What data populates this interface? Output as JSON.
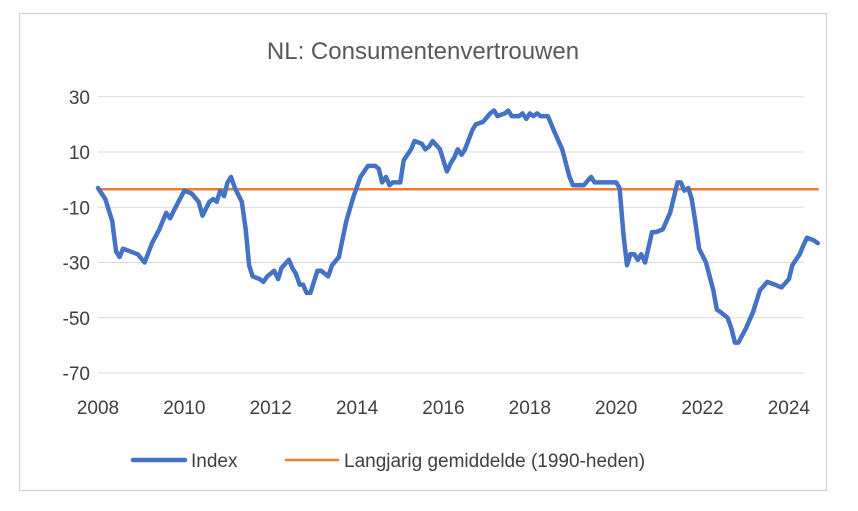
{
  "chart_data": {
    "type": "line",
    "title": "NL: Consumentenvertrouwen",
    "xlabel": "",
    "ylabel": "",
    "xlim": [
      2008,
      2024.35
    ],
    "ylim": [
      -70,
      35
    ],
    "x_ticks": [
      2008,
      2010,
      2012,
      2014,
      2016,
      2018,
      2020,
      2022,
      2024
    ],
    "y_ticks": [
      30,
      10,
      -10,
      -30,
      -50,
      -70
    ],
    "grid": "horizontal",
    "legend": "bottom",
    "series": [
      {
        "name": "Index",
        "color": "#4472c4",
        "points": [
          [
            2008.0,
            -3
          ],
          [
            2008.17,
            -7
          ],
          [
            2008.33,
            -15
          ],
          [
            2008.42,
            -26
          ],
          [
            2008.5,
            -28
          ],
          [
            2008.58,
            -25
          ],
          [
            2008.75,
            -26
          ],
          [
            2008.92,
            -27
          ],
          [
            2009.08,
            -30
          ],
          [
            2009.25,
            -23
          ],
          [
            2009.42,
            -18
          ],
          [
            2009.58,
            -12
          ],
          [
            2009.67,
            -14
          ],
          [
            2009.83,
            -9
          ],
          [
            2010.0,
            -4
          ],
          [
            2010.17,
            -5
          ],
          [
            2010.33,
            -8
          ],
          [
            2010.42,
            -13
          ],
          [
            2010.58,
            -8
          ],
          [
            2010.67,
            -7
          ],
          [
            2010.75,
            -8
          ],
          [
            2010.83,
            -4
          ],
          [
            2010.92,
            -6
          ],
          [
            2011.0,
            -1
          ],
          [
            2011.08,
            1
          ],
          [
            2011.17,
            -3
          ],
          [
            2011.33,
            -8
          ],
          [
            2011.42,
            -18
          ],
          [
            2011.5,
            -31
          ],
          [
            2011.58,
            -35
          ],
          [
            2011.75,
            -36
          ],
          [
            2011.83,
            -37
          ],
          [
            2011.92,
            -35
          ],
          [
            2012.0,
            -34
          ],
          [
            2012.08,
            -33
          ],
          [
            2012.17,
            -36
          ],
          [
            2012.25,
            -32
          ],
          [
            2012.42,
            -29
          ],
          [
            2012.5,
            -32
          ],
          [
            2012.58,
            -34
          ],
          [
            2012.67,
            -38
          ],
          [
            2012.75,
            -38
          ],
          [
            2012.83,
            -41
          ],
          [
            2012.92,
            -41
          ],
          [
            2013.08,
            -33
          ],
          [
            2013.17,
            -33
          ],
          [
            2013.33,
            -35
          ],
          [
            2013.42,
            -31
          ],
          [
            2013.58,
            -28
          ],
          [
            2013.75,
            -15
          ],
          [
            2013.92,
            -6
          ],
          [
            2014.08,
            1
          ],
          [
            2014.25,
            5
          ],
          [
            2014.42,
            5
          ],
          [
            2014.5,
            4
          ],
          [
            2014.58,
            -1
          ],
          [
            2014.67,
            1
          ],
          [
            2014.75,
            -2
          ],
          [
            2014.83,
            -1
          ],
          [
            2015.0,
            -1
          ],
          [
            2015.08,
            7
          ],
          [
            2015.25,
            11
          ],
          [
            2015.33,
            14
          ],
          [
            2015.5,
            13
          ],
          [
            2015.58,
            11
          ],
          [
            2015.67,
            12
          ],
          [
            2015.75,
            14
          ],
          [
            2015.92,
            11
          ],
          [
            2016.0,
            7
          ],
          [
            2016.08,
            3
          ],
          [
            2016.17,
            6
          ],
          [
            2016.25,
            8
          ],
          [
            2016.33,
            11
          ],
          [
            2016.42,
            9
          ],
          [
            2016.5,
            11
          ],
          [
            2016.67,
            18
          ],
          [
            2016.75,
            20
          ],
          [
            2016.92,
            21
          ],
          [
            2017.08,
            24
          ],
          [
            2017.17,
            25
          ],
          [
            2017.25,
            23
          ],
          [
            2017.42,
            24
          ],
          [
            2017.5,
            25
          ],
          [
            2017.58,
            23
          ],
          [
            2017.75,
            23
          ],
          [
            2017.83,
            24
          ],
          [
            2017.92,
            22
          ],
          [
            2018.0,
            24
          ],
          [
            2018.08,
            23
          ],
          [
            2018.17,
            24
          ],
          [
            2018.25,
            23
          ],
          [
            2018.42,
            23
          ],
          [
            2018.58,
            17
          ],
          [
            2018.75,
            11
          ],
          [
            2018.92,
            1
          ],
          [
            2019.0,
            -2
          ],
          [
            2019.08,
            -2
          ],
          [
            2019.25,
            -2
          ],
          [
            2019.42,
            1
          ],
          [
            2019.5,
            -1
          ],
          [
            2019.67,
            -1
          ],
          [
            2019.83,
            -1
          ],
          [
            2020.0,
            -1
          ],
          [
            2020.08,
            -3
          ],
          [
            2020.17,
            -20
          ],
          [
            2020.25,
            -31
          ],
          [
            2020.33,
            -27
          ],
          [
            2020.42,
            -27
          ],
          [
            2020.5,
            -29
          ],
          [
            2020.58,
            -27
          ],
          [
            2020.67,
            -30
          ],
          [
            2020.83,
            -19
          ],
          [
            2020.92,
            -19
          ],
          [
            2021.08,
            -18
          ],
          [
            2021.25,
            -12
          ],
          [
            2021.42,
            -1
          ],
          [
            2021.5,
            -1
          ],
          [
            2021.58,
            -4
          ],
          [
            2021.67,
            -3
          ],
          [
            2021.75,
            -7
          ],
          [
            2021.83,
            -15
          ],
          [
            2021.92,
            -25
          ],
          [
            2022.08,
            -30
          ],
          [
            2022.25,
            -40
          ],
          [
            2022.33,
            -47
          ],
          [
            2022.42,
            -48
          ],
          [
            2022.5,
            -49
          ],
          [
            2022.58,
            -50
          ],
          [
            2022.67,
            -54
          ],
          [
            2022.75,
            -59
          ],
          [
            2022.83,
            -59
          ],
          [
            2023.0,
            -54
          ],
          [
            2023.17,
            -48
          ],
          [
            2023.33,
            -40
          ],
          [
            2023.5,
            -37
          ],
          [
            2023.67,
            -38
          ],
          [
            2023.83,
            -39
          ],
          [
            2024.0,
            -36
          ],
          [
            2024.08,
            -31
          ],
          [
            2024.25,
            -27
          ],
          [
            2024.33,
            -24
          ],
          [
            2024.42,
            -21
          ],
          [
            2024.58,
            -22
          ],
          [
            2024.67,
            -23
          ]
        ]
      },
      {
        "name": "Langjarig gemiddelde (1990-heden)",
        "color": "#ed7d31",
        "points": [
          [
            2008.0,
            -3.5
          ],
          [
            2024.67,
            -3.5
          ]
        ]
      }
    ]
  }
}
